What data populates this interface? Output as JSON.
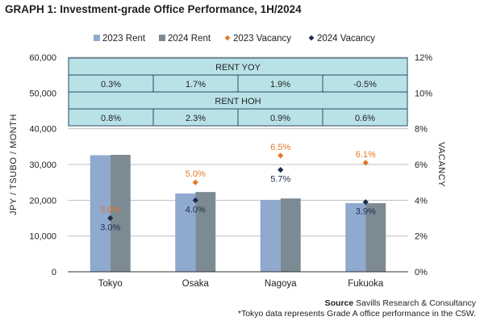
{
  "title": "GRAPH 1: Investment-grade Office Performance, 1H/2024",
  "source_label": "Source",
  "source_text": "Savills Research & Consultancy",
  "footnote": "*Tokyo data represents Grade A office performance in the C5W.",
  "colors": {
    "rent_2023": "#8fa9cf",
    "rent_2024": "#7c8a94",
    "vacancy_2023": "#e87722",
    "vacancy_2024": "#1c2b4a",
    "table_fill": "#b9e2e7",
    "table_border": "#2a4a66"
  },
  "chart_data": {
    "type": "bar",
    "categories": [
      "Tokyo",
      "Osaka",
      "Nagoya",
      "Fukuoka"
    ],
    "series": [
      {
        "name": "2023 Rent",
        "type": "bar",
        "axis": "left",
        "values": [
          32600,
          21900,
          20100,
          19200
        ]
      },
      {
        "name": "2024 Rent",
        "type": "bar",
        "axis": "left",
        "values": [
          32700,
          22300,
          20500,
          19200
        ]
      },
      {
        "name": "2023 Vacancy",
        "type": "scatter",
        "axis": "right",
        "values": [
          3.0,
          5.0,
          6.5,
          6.1
        ],
        "labels": [
          "3.0%",
          "5.0%",
          "6.5%",
          "6.1%"
        ]
      },
      {
        "name": "2024 Vacancy",
        "type": "scatter",
        "axis": "right",
        "values": [
          3.0,
          4.0,
          5.7,
          3.9
        ],
        "labels": [
          "3.0%",
          "4.0%",
          "5.7%",
          "3.9%"
        ]
      }
    ],
    "ylabel": "JPY / TSUBO / MONTH",
    "y2label": "VACANCY",
    "ylim": [
      0,
      60000
    ],
    "y2lim": [
      0,
      12
    ],
    "yticks": [
      "0",
      "10,000",
      "20,000",
      "30,000",
      "40,000",
      "50,000",
      "60,000"
    ],
    "y2ticks": [
      "0%",
      "2%",
      "4%",
      "6%",
      "8%",
      "10%",
      "12%"
    ],
    "legend_position": "top",
    "grid": true,
    "table": {
      "sections": [
        {
          "header": "RENT YOY",
          "values": [
            "0.3%",
            "1.7%",
            "1.9%",
            "-0.5%"
          ]
        },
        {
          "header": "RENT HOH",
          "values": [
            "0.8%",
            "2.3%",
            "0.9%",
            "0.6%"
          ]
        }
      ]
    }
  }
}
